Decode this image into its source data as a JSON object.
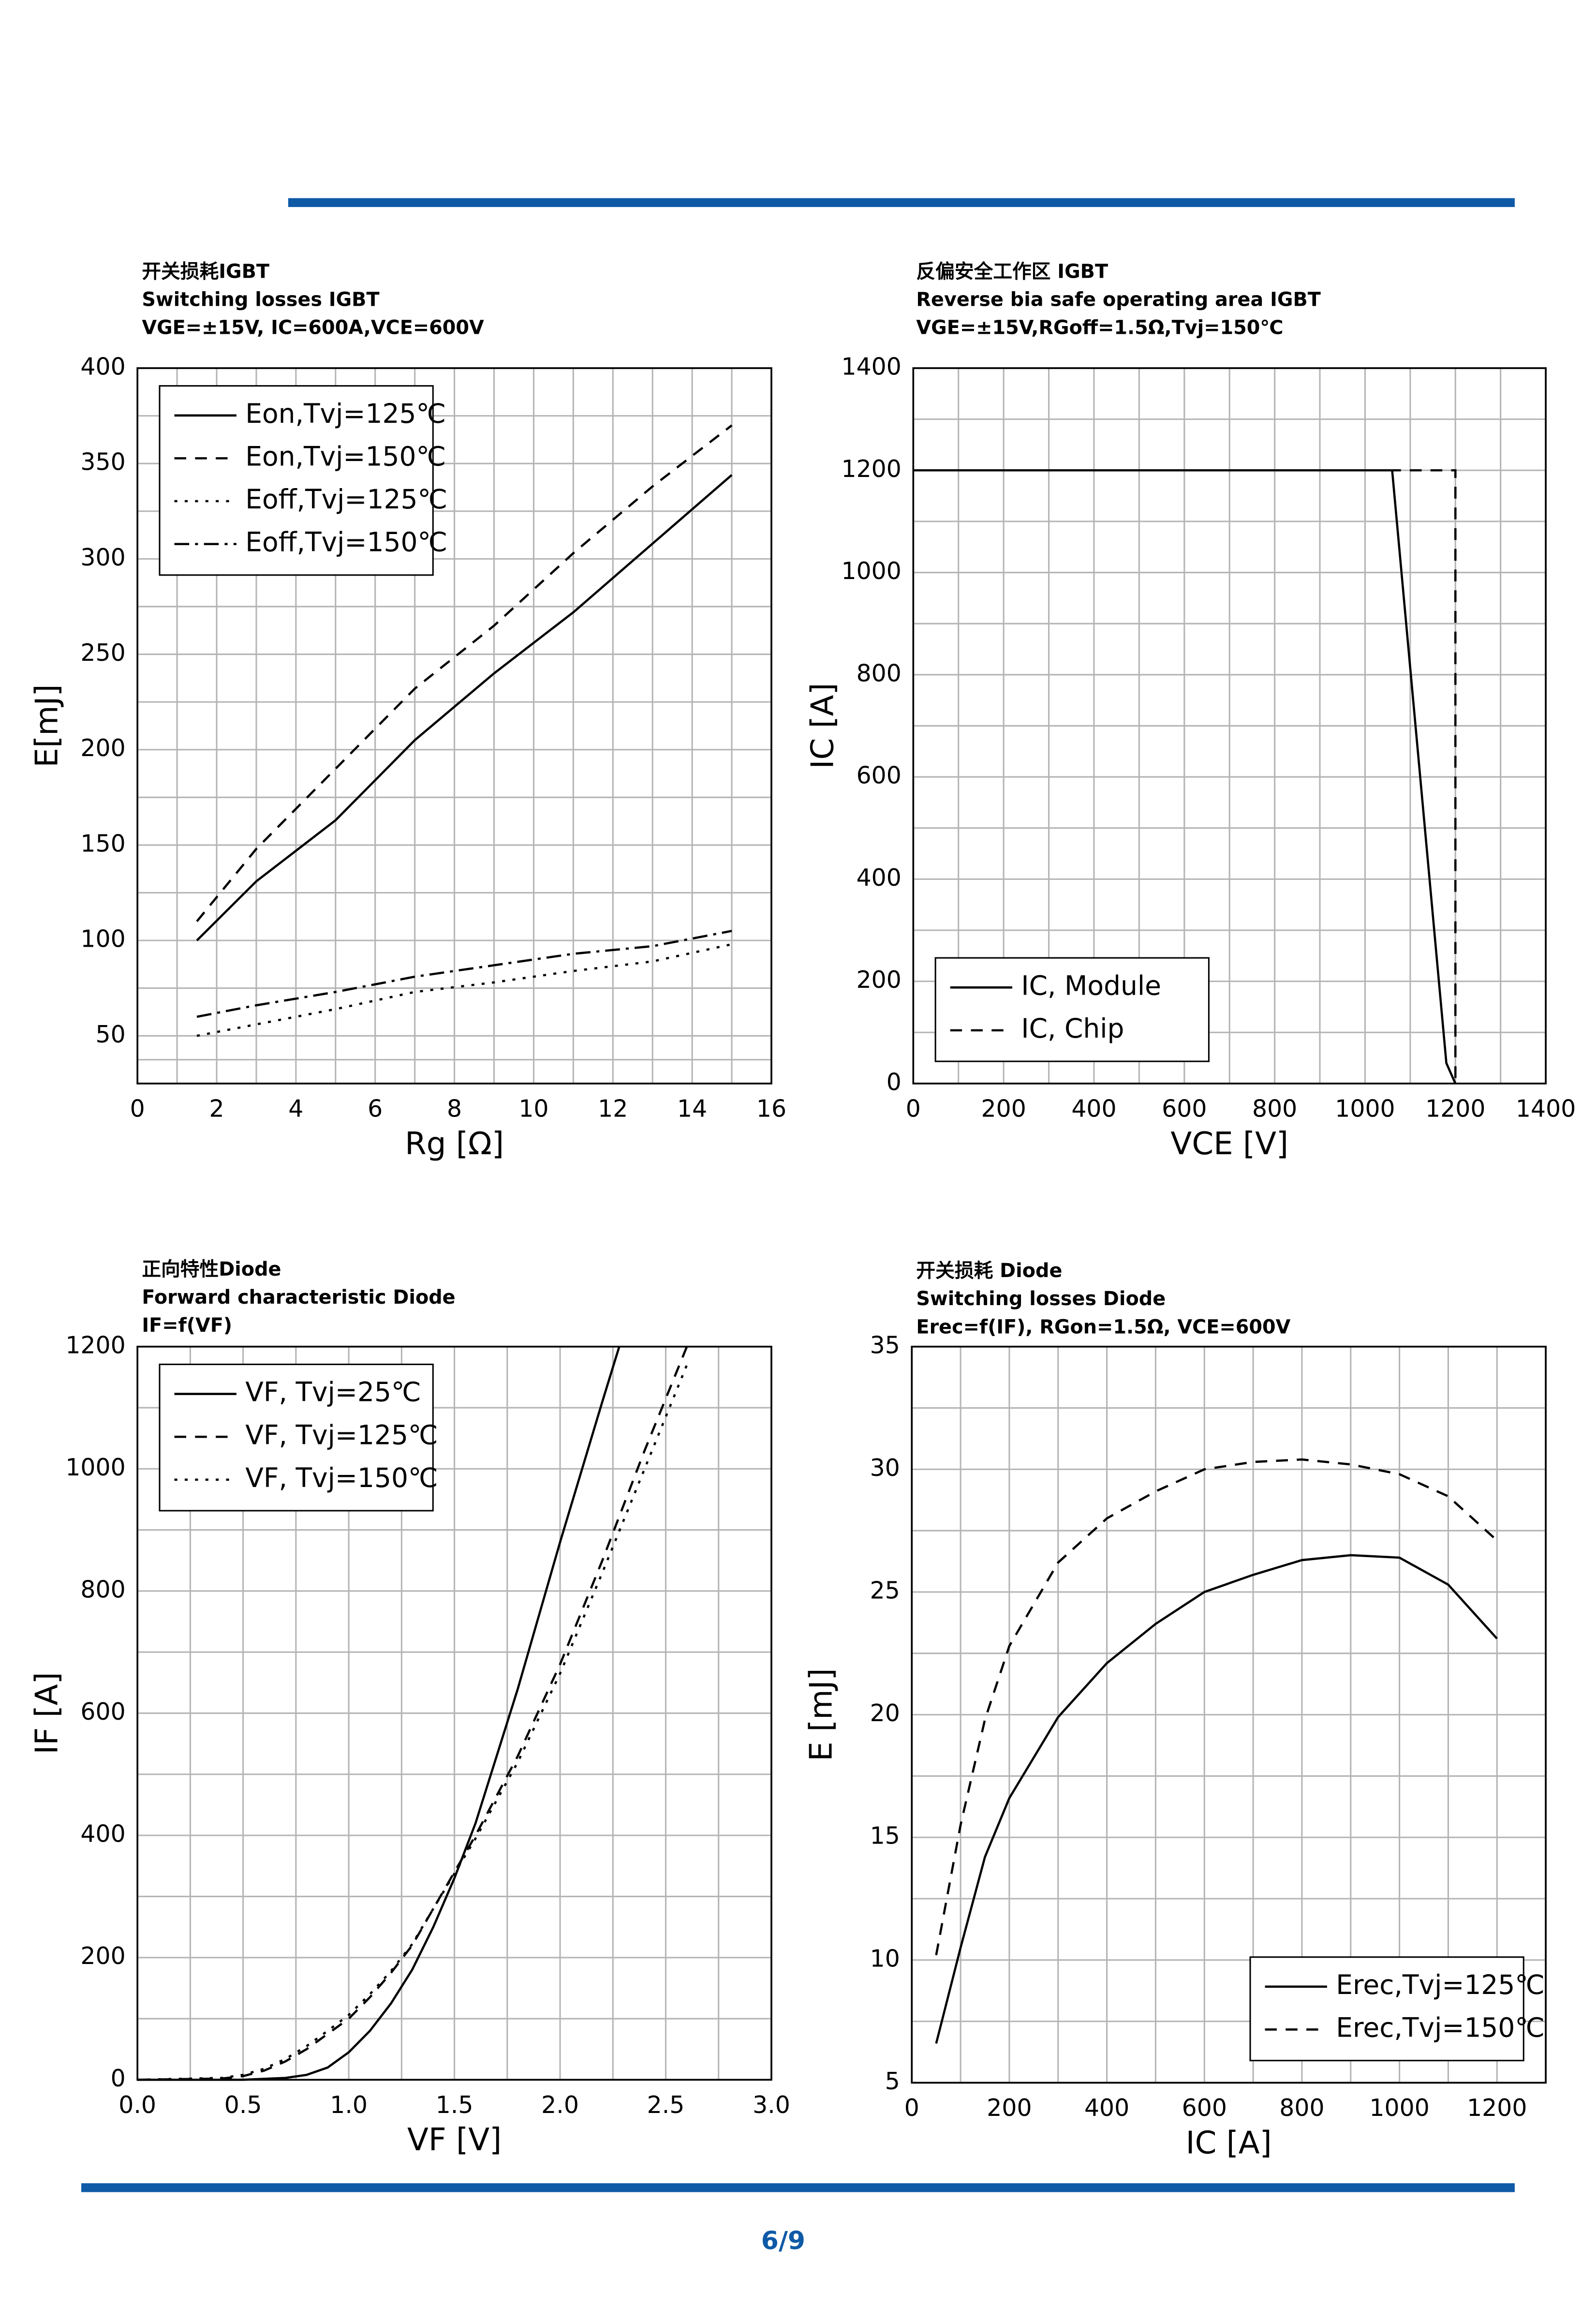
{
  "page_number": "6/9",
  "chart_data": [
    {
      "type": "line",
      "title": "开关损耗IGBT",
      "subtitle": "Switching losses IGBT",
      "note": "VGE=±15V, IC=600A,VCE=600V",
      "x_label": "Rg [Ω]",
      "y_label": "E[mJ]",
      "xlim": [
        0,
        16
      ],
      "xticks": [
        0,
        2,
        4,
        6,
        8,
        10,
        12,
        14,
        16
      ],
      "ylim": [
        25,
        400
      ],
      "yticks": [
        50,
        100,
        150,
        200,
        250,
        300,
        350,
        400
      ],
      "grid": true,
      "minor_grid": true,
      "legend": "upper left",
      "series": [
        {
          "name": "Eon,Tvj=125℃",
          "color": "#000000",
          "style": "solid",
          "x": [
            1.5,
            3,
            5,
            7,
            9,
            11,
            13,
            15
          ],
          "values": [
            100,
            131,
            163,
            205,
            240,
            272,
            308,
            344
          ]
        },
        {
          "name": "Eon,Tvj=150℃",
          "color": "#000000",
          "style": "dashed",
          "x": [
            1.5,
            3,
            5,
            7,
            9,
            11,
            13,
            15
          ],
          "values": [
            110,
            148,
            190,
            232,
            265,
            303,
            338,
            370
          ]
        },
        {
          "name": "Eoff,Tvj=125℃",
          "color": "#000000",
          "style": "dotted",
          "x": [
            1.5,
            3,
            5,
            7,
            9,
            11,
            13,
            15
          ],
          "values": [
            50,
            56,
            64,
            73,
            78,
            84,
            89,
            98
          ]
        },
        {
          "name": "Eoff,Tvj=150℃",
          "color": "#000000",
          "style": "dashdot",
          "x": [
            1.5,
            3,
            5,
            7,
            9,
            11,
            13,
            15
          ],
          "values": [
            60,
            66,
            73,
            81,
            87,
            93,
            97,
            105
          ]
        }
      ]
    },
    {
      "type": "line",
      "title": "反偏安全工作区 IGBT",
      "subtitle": " Reverse bia safe operating area IGBT",
      "note": "VGE=±15V,RGoff=1.5Ω,Tvj=150℃",
      "x_label": "VCE [V]",
      "y_label": "IC [A]",
      "xlim": [
        0,
        1400
      ],
      "xticks": [
        0,
        200,
        400,
        600,
        800,
        1000,
        1200,
        1400
      ],
      "ylim": [
        0,
        1400
      ],
      "yticks": [
        0,
        200,
        400,
        600,
        800,
        1000,
        1200,
        1400
      ],
      "grid": true,
      "minor_grid": true,
      "legend": "lower left",
      "series": [
        {
          "name": "IC, Module",
          "color": "#000000",
          "style": "solid",
          "x": [
            0,
            1060,
            1180,
            1200
          ],
          "values": [
            1200,
            1200,
            40,
            0
          ]
        },
        {
          "name": "IC, Chip",
          "color": "#000000",
          "style": "dashed",
          "x": [
            0,
            1200,
            1200
          ],
          "values": [
            1200,
            1200,
            0
          ]
        }
      ]
    },
    {
      "type": "line",
      "title": "正向特性Diode",
      "subtitle": " Forward characteristic Diode",
      "note": "IF=f(VF)",
      "x_label": "VF [V]",
      "y_label": "IF [A]",
      "xlim": [
        0,
        3
      ],
      "xticks": [
        {
          "value": 0,
          "label": "0.0"
        },
        0.5,
        {
          "value": 1,
          "label": "1.0"
        },
        1.5,
        {
          "value": 2,
          "label": "2.0"
        },
        2.5,
        {
          "value": 3,
          "label": "3.0"
        }
      ],
      "ylim": [
        0,
        1200
      ],
      "yticks": [
        0,
        200,
        400,
        600,
        800,
        1000,
        1200
      ],
      "grid": true,
      "minor_grid": true,
      "legend": "upper left",
      "series": [
        {
          "name": "VF, Tvj=25℃",
          "color": "#000000",
          "style": "solid",
          "x": [
            0,
            0.5,
            0.7,
            0.8,
            0.9,
            1.0,
            1.1,
            1.2,
            1.3,
            1.4,
            1.5,
            1.6,
            1.8,
            2.0,
            2.2,
            2.28
          ],
          "values": [
            0,
            0,
            3,
            8,
            20,
            45,
            80,
            125,
            180,
            250,
            330,
            420,
            640,
            880,
            1110,
            1200
          ]
        },
        {
          "name": "VF, Tvj=125℃",
          "color": "#000000",
          "style": "dashed",
          "x": [
            0,
            0.4,
            0.5,
            0.6,
            0.7,
            0.8,
            0.9,
            1.0,
            1.1,
            1.2,
            1.3,
            1.4,
            1.6,
            1.8,
            2.0,
            2.2,
            2.4,
            2.6
          ],
          "values": [
            0,
            2,
            6,
            15,
            30,
            50,
            75,
            100,
            135,
            175,
            220,
            280,
            400,
            530,
            680,
            850,
            1030,
            1200
          ]
        },
        {
          "name": "VF, Tvj=150℃",
          "color": "#000000",
          "style": "dotted",
          "x": [
            0,
            0.4,
            0.5,
            0.6,
            0.7,
            0.8,
            0.9,
            1.0,
            1.1,
            1.2,
            1.3,
            1.4,
            1.6,
            1.8,
            2.0,
            2.2,
            2.4,
            2.6
          ],
          "values": [
            0,
            3,
            8,
            18,
            34,
            55,
            80,
            106,
            140,
            178,
            222,
            280,
            395,
            520,
            665,
            830,
            1000,
            1170
          ]
        }
      ]
    },
    {
      "type": "line",
      "title": "开关损耗 Diode",
      "subtitle": "Switching losses Diode",
      "note": "Erec=f(IF), RGon=1.5Ω, VCE=600V",
      "x_label": "IC [A]",
      "y_label": "E [mJ]",
      "xlim": [
        0,
        1300
      ],
      "xticks": [
        0,
        200,
        400,
        600,
        800,
        1000,
        1200
      ],
      "ylim": [
        5,
        35
      ],
      "yticks": [
        5,
        10,
        15,
        20,
        25,
        30,
        35
      ],
      "grid": true,
      "minor_grid": true,
      "legend": "lower right",
      "series": [
        {
          "name": "Erec,Tvj=125℃",
          "color": "#000000",
          "style": "solid",
          "x": [
            50,
            100,
            150,
            200,
            300,
            400,
            500,
            600,
            700,
            800,
            900,
            1000,
            1100,
            1200
          ],
          "values": [
            6.6,
            10.5,
            14.2,
            16.6,
            19.9,
            22.1,
            23.7,
            25.0,
            25.7,
            26.3,
            26.5,
            26.4,
            25.3,
            23.1
          ]
        },
        {
          "name": "Erec,Tvj=150℃",
          "color": "#000000",
          "style": "dashed",
          "x": [
            50,
            100,
            150,
            200,
            300,
            400,
            500,
            600,
            700,
            800,
            900,
            1000,
            1100,
            1200
          ],
          "values": [
            10.2,
            15.5,
            19.8,
            22.8,
            26.2,
            28.0,
            29.1,
            30.0,
            30.3,
            30.4,
            30.2,
            29.8,
            28.9,
            27.1
          ]
        }
      ]
    }
  ]
}
